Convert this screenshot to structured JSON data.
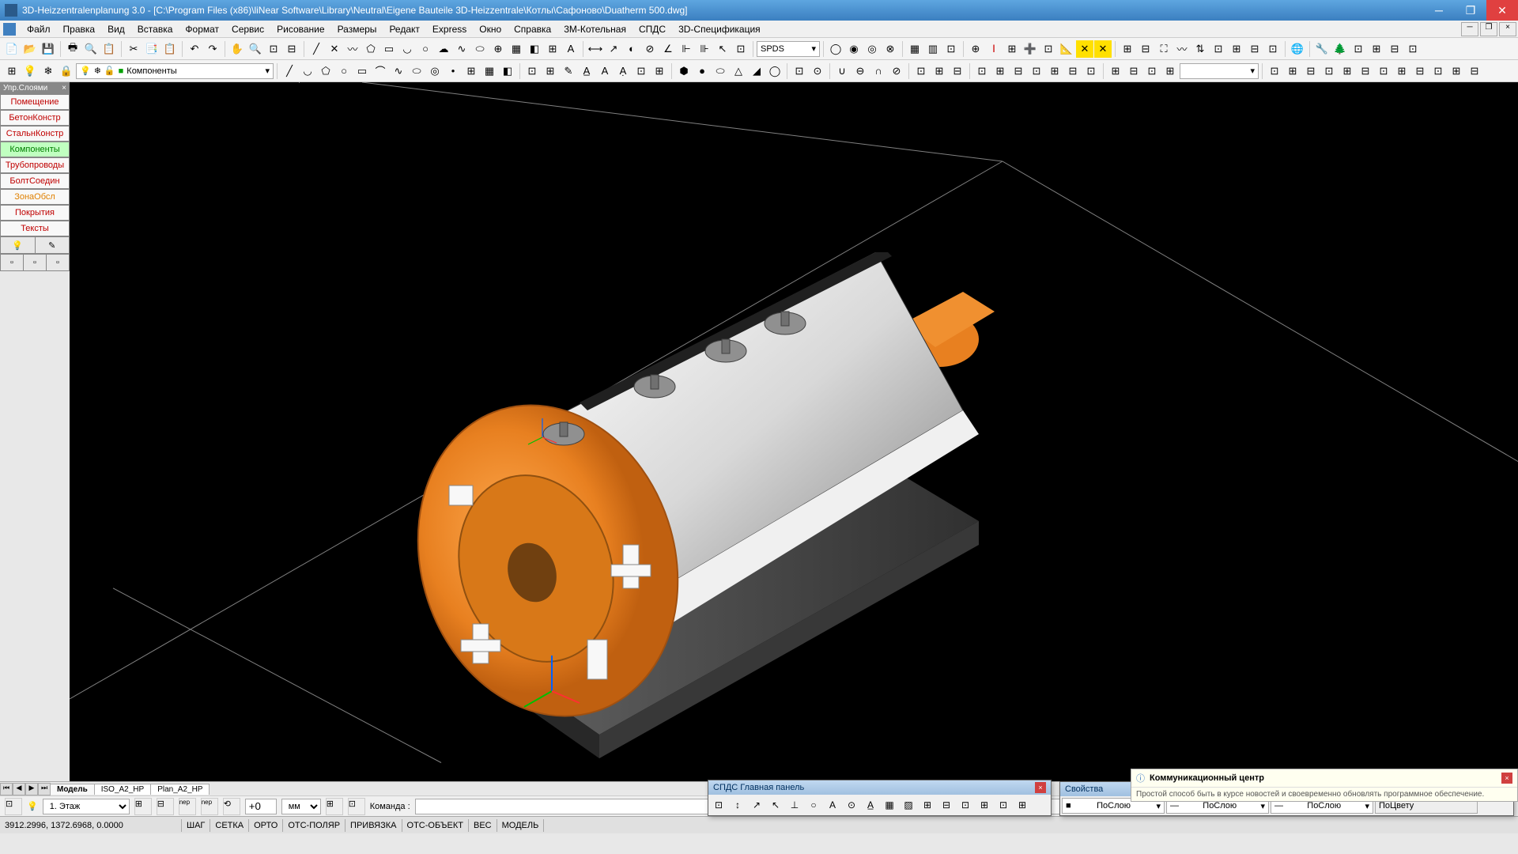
{
  "title": "3D-Heizzentralenplanung 3.0 - [C:\\Program Files (x86)\\liNear Software\\Library\\Neutral\\Eigene Bauteile 3D-Heizzentrale\\Котлы\\Сафоново\\Duatherm 500.dwg]",
  "menu": [
    "Файл",
    "Правка",
    "Вид",
    "Вставка",
    "Формат",
    "Сервис",
    "Рисование",
    "Размеры",
    "Редакт",
    "Express",
    "Окно",
    "Справка",
    "3М-Котельная",
    "СПДС",
    "3D-Спецификация"
  ],
  "spds_combo": "SPDS",
  "layer_combo": "Компоненты",
  "layer_panel": {
    "title": "Упр.Слоями",
    "items": [
      {
        "label": "Помещение",
        "cls": "layer-red"
      },
      {
        "label": "БетонКонстр",
        "cls": "layer-red"
      },
      {
        "label": "СтальнКонстр",
        "cls": "layer-red"
      },
      {
        "label": "Компоненты",
        "cls": "layer-active"
      },
      {
        "label": "Трубопроводы",
        "cls": "layer-red"
      },
      {
        "label": "БолтСоедин",
        "cls": "layer-red"
      },
      {
        "label": "ЗонаОбсл",
        "cls": "layer-orange"
      },
      {
        "label": "Покрытия",
        "cls": "layer-red"
      },
      {
        "label": "Тексты",
        "cls": "layer-red"
      }
    ]
  },
  "tabs": {
    "items": [
      "Модель",
      "ISO_A2_HP",
      "Plan_A2_HP"
    ],
    "active": 0
  },
  "aux": {
    "floor": "1. Этаж",
    "rotate": "+0",
    "unit": "мм",
    "cmd_label": "Команда :"
  },
  "status": {
    "coords": "3912.2996, 1372.6968, 0.0000",
    "toggles": [
      "ШАГ",
      "СЕТКА",
      "ОРТО",
      "ОТС-ПОЛЯР",
      "ПРИВЯЗКА",
      "ОТС-ОБЪЕКТ",
      "ВЕС",
      "МОДЕЛЬ"
    ]
  },
  "spds_panel": {
    "title": "СПДС Главная панель"
  },
  "props_panel": {
    "title": "Свойства",
    "c1": "ПоСлою",
    "c2": "ПоСлою",
    "c3": "ПоСлою",
    "c4": "ПоЦвету"
  },
  "notify": {
    "title": "Коммуникационный центр",
    "body": "Простой способ быть в курсе новостей и своевременно обновлять программное обеспечение."
  },
  "colors": {
    "boiler_orange": "#e88020",
    "boiler_light": "#f5f5f5",
    "boiler_dark": "#909090",
    "base": "#404040"
  }
}
